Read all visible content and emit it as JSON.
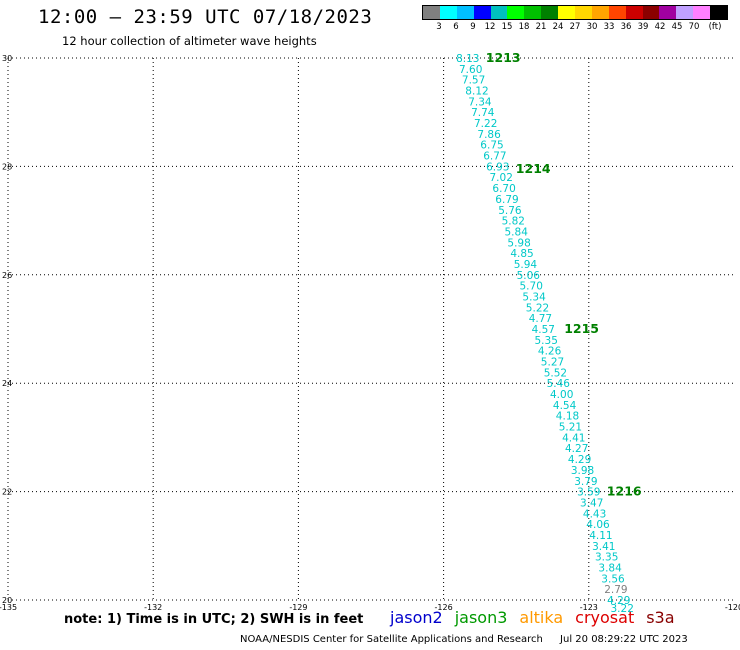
{
  "header": {
    "title": "12:00 — 23:59 UTC 07/18/2023",
    "subtitle": "12 hour collection of altimeter wave heights"
  },
  "legend": {
    "colors": [
      "#808080",
      "#00ffff",
      "#00bfff",
      "#0000ff",
      "#00bfbf",
      "#00ff00",
      "#00c000",
      "#008000",
      "#ffff00",
      "#ffd700",
      "#ffa500",
      "#ff4500",
      "#cc0000",
      "#8b0000",
      "#a000a0",
      "#c0a0ff",
      "#ff80ff",
      "#000000"
    ],
    "labels": [
      "3",
      "6",
      "9",
      "12",
      "15",
      "18",
      "21",
      "24",
      "27",
      "30",
      "33",
      "36",
      "39",
      "42",
      "45",
      "70",
      "(ft)"
    ]
  },
  "map": {
    "x_ticks": [
      "-135",
      "-132",
      "-129",
      "-126",
      "-123",
      "-120"
    ],
    "y_ticks": [
      "30",
      "28",
      "26",
      "24",
      "22",
      "20"
    ]
  },
  "chart_data": {
    "type": "map-track",
    "x_range": [
      -135,
      -120
    ],
    "y_range": [
      20,
      30
    ],
    "grid": true,
    "track_color": "#00c8c8",
    "points": [
      {
        "lon": -125.5,
        "lat": 30.0,
        "swh": "8.13"
      },
      {
        "lon": -125.44,
        "lat": 29.8,
        "swh": "7.60"
      },
      {
        "lon": -125.38,
        "lat": 29.6,
        "swh": "7.57"
      },
      {
        "lon": -125.31,
        "lat": 29.4,
        "swh": "8.12"
      },
      {
        "lon": -125.25,
        "lat": 29.2,
        "swh": "7.34"
      },
      {
        "lon": -125.19,
        "lat": 29.0,
        "swh": "7.74"
      },
      {
        "lon": -125.13,
        "lat": 28.8,
        "swh": "7.22"
      },
      {
        "lon": -125.06,
        "lat": 28.6,
        "swh": "7.86"
      },
      {
        "lon": -125.0,
        "lat": 28.4,
        "swh": "6.75"
      },
      {
        "lon": -124.94,
        "lat": 28.2,
        "swh": "6.77"
      },
      {
        "lon": -124.88,
        "lat": 28.0,
        "swh": "6.93"
      },
      {
        "lon": -124.81,
        "lat": 27.8,
        "swh": "7.02"
      },
      {
        "lon": -124.75,
        "lat": 27.6,
        "swh": "6.70"
      },
      {
        "lon": -124.69,
        "lat": 27.4,
        "swh": "6.79"
      },
      {
        "lon": -124.63,
        "lat": 27.2,
        "swh": "5.76"
      },
      {
        "lon": -124.56,
        "lat": 27.0,
        "swh": "5.82"
      },
      {
        "lon": -124.5,
        "lat": 26.8,
        "swh": "5.84"
      },
      {
        "lon": -124.44,
        "lat": 26.6,
        "swh": "5.98"
      },
      {
        "lon": -124.38,
        "lat": 26.4,
        "swh": "4.85"
      },
      {
        "lon": -124.31,
        "lat": 26.2,
        "swh": "5.94"
      },
      {
        "lon": -124.25,
        "lat": 26.0,
        "swh": "5.06"
      },
      {
        "lon": -124.19,
        "lat": 25.8,
        "swh": "5.70"
      },
      {
        "lon": -124.13,
        "lat": 25.6,
        "swh": "5.34"
      },
      {
        "lon": -124.06,
        "lat": 25.4,
        "swh": "5.22"
      },
      {
        "lon": -124.0,
        "lat": 25.2,
        "swh": "4.77"
      },
      {
        "lon": -123.94,
        "lat": 25.0,
        "swh": "4.57"
      },
      {
        "lon": -123.88,
        "lat": 24.8,
        "swh": "5.35"
      },
      {
        "lon": -123.81,
        "lat": 24.6,
        "swh": "4.26"
      },
      {
        "lon": -123.75,
        "lat": 24.4,
        "swh": "5.27"
      },
      {
        "lon": -123.69,
        "lat": 24.2,
        "swh": "5.52"
      },
      {
        "lon": -123.63,
        "lat": 24.0,
        "swh": "5.46"
      },
      {
        "lon": -123.56,
        "lat": 23.8,
        "swh": "4.00"
      },
      {
        "lon": -123.5,
        "lat": 23.6,
        "swh": "4.54"
      },
      {
        "lon": -123.44,
        "lat": 23.4,
        "swh": "4.18"
      },
      {
        "lon": -123.38,
        "lat": 23.2,
        "swh": "5.21"
      },
      {
        "lon": -123.31,
        "lat": 23.0,
        "swh": "4.41"
      },
      {
        "lon": -123.25,
        "lat": 22.8,
        "swh": "4.27"
      },
      {
        "lon": -123.19,
        "lat": 22.6,
        "swh": "4.29"
      },
      {
        "lon": -123.13,
        "lat": 22.4,
        "swh": "3.98"
      },
      {
        "lon": -123.06,
        "lat": 22.2,
        "swh": "3.79"
      },
      {
        "lon": -123.0,
        "lat": 22.0,
        "swh": "3.59"
      },
      {
        "lon": -122.94,
        "lat": 21.8,
        "swh": "3.47"
      },
      {
        "lon": -122.88,
        "lat": 21.6,
        "swh": "4.43"
      },
      {
        "lon": -122.81,
        "lat": 21.4,
        "swh": "4.06"
      },
      {
        "lon": -122.75,
        "lat": 21.2,
        "swh": "4.11"
      },
      {
        "lon": -122.69,
        "lat": 21.0,
        "swh": "3.41"
      },
      {
        "lon": -122.63,
        "lat": 20.8,
        "swh": "3.35"
      },
      {
        "lon": -122.56,
        "lat": 20.6,
        "swh": "3.84"
      },
      {
        "lon": -122.5,
        "lat": 20.4,
        "swh": "3.56"
      },
      {
        "lon": -122.44,
        "lat": 20.2,
        "swh": "2.79",
        "color": "#808080"
      },
      {
        "lon": -122.38,
        "lat": 20.0,
        "swh": "4.29"
      },
      {
        "lon": -122.31,
        "lat": 19.85,
        "swh": "3.22"
      }
    ],
    "time_labels": [
      {
        "lon": -125.5,
        "lat": 30.0,
        "text": "1213"
      },
      {
        "lon": -124.88,
        "lat": 27.95,
        "text": "1214"
      },
      {
        "lon": -123.88,
        "lat": 25.0,
        "text": "1215"
      },
      {
        "lon": -123.0,
        "lat": 22.0,
        "text": "1216"
      }
    ],
    "time_label_color": "#008000"
  },
  "footer": {
    "note": "note: 1) Time is in UTC; 2) SWH is in feet",
    "missions": [
      {
        "name": "jason2",
        "color": "#0000cc"
      },
      {
        "name": "jason3",
        "color": "#009900"
      },
      {
        "name": "altika",
        "color": "#ff9900"
      },
      {
        "name": "cryosat",
        "color": "#dd0000"
      },
      {
        "name": "s3a",
        "color": "#880000"
      }
    ],
    "credit": "NOAA/NESDIS Center for Satellite Applications and Research",
    "timestamp": "Jul 20 08:29:22 UTC 2023"
  }
}
